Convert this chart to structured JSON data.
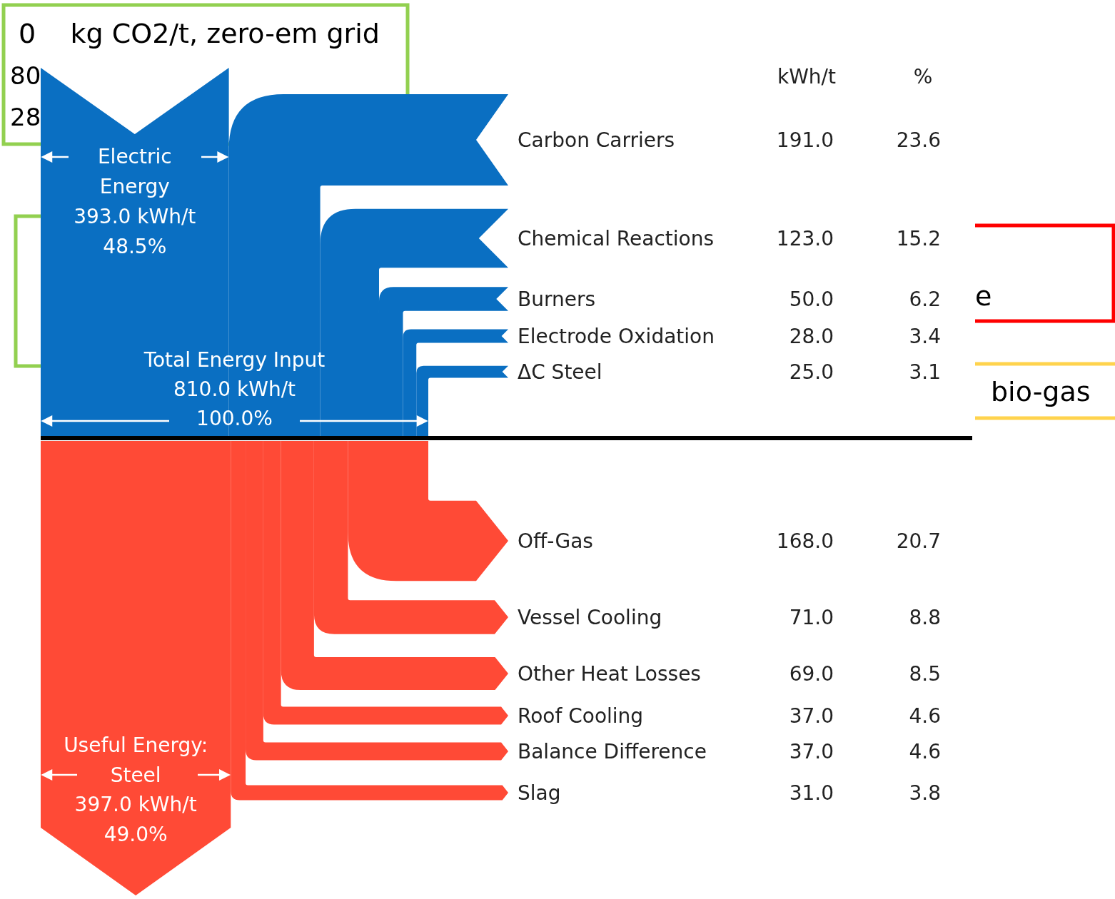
{
  "chart_data": {
    "type": "other",
    "categories": [
      "Carbon Carriers",
      "Chemical Reactions",
      "Burners",
      "Electrode Oxidation",
      "ΔC Steel",
      "Off-Gas",
      "Vessel Cooling",
      "Other Heat Losses",
      "Roof Cooling",
      "Balance Difference",
      "Slag"
    ],
    "colors": [
      "#0a6fc2",
      "#0a6fc2",
      "#0a6fc2",
      "#0a6fc2",
      "#0a6fc2",
      "#ff4a36",
      "#ff4a36",
      "#ff4a36",
      "#ff4a36",
      "#ff4a36",
      "#ff4a36"
    ],
    "series": [
      {
        "name": "kWh/t",
        "values": [
          191,
          123,
          50,
          28,
          25,
          168,
          71,
          69,
          37,
          37,
          31
        ],
        "value_labels": [
          "191.0",
          "123.0",
          "50.0",
          "28.0",
          "25.0",
          "168.0",
          "71.0",
          "69.0",
          "37.0",
          "37.0",
          "31.0"
        ]
      },
      {
        "name": "%",
        "values": [
          23.6,
          15.2,
          6.2,
          3.4,
          3.1,
          20.7,
          8.8,
          8.5,
          4.6,
          4.6,
          3.8
        ],
        "value_labels": [
          "23.6",
          "15.2",
          "6.2",
          "3.4",
          "3.1",
          "20.7",
          "8.8",
          "8.5",
          "4.6",
          "4.6",
          "3.8"
        ]
      }
    ],
    "annotations": [
      "Electric Energy",
      "393.0 kWh/t",
      "48.5%",
      "Total Energy Input",
      "810.0 kWh/t",
      "100.0%",
      "Useful Energy: Steel",
      "397.0 kWh/t",
      "49.0%",
      "0    kg CO2/t, zero-em grid",
      "80",
      "28",
      "e",
      "bio-gas"
    ]
  }
}
